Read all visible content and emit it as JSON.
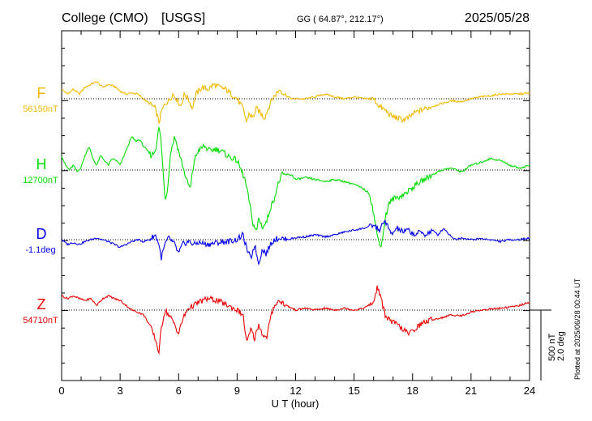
{
  "header": {
    "station": "College (CMO)",
    "network": "[USGS]",
    "geo": "GG ( 64.87°, 212.17°)",
    "date": "2025/05/28"
  },
  "plotted_note": "Plotted at 2025/06/28 00:44 UT",
  "scale_label_1": "500 nT",
  "scale_label_2": "2.0 deg",
  "chart_data": {
    "type": "line",
    "xlabel": "U T (hour)",
    "xlim": [
      0,
      24
    ],
    "xticks": [
      0,
      3,
      6,
      9,
      12,
      15,
      18,
      21,
      24
    ],
    "grid": false,
    "series": [
      {
        "name": "F",
        "baseline_label": "56150nT",
        "color": "#f5b800",
        "points": [
          [
            0,
            0.1
          ],
          [
            0.3,
            0.05
          ],
          [
            0.6,
            0.1
          ],
          [
            0.9,
            0.05
          ],
          [
            1.2,
            0.12
          ],
          [
            1.5,
            0.15
          ],
          [
            1.8,
            0.18
          ],
          [
            2.1,
            0.12
          ],
          [
            2.4,
            0.15
          ],
          [
            2.7,
            0.13
          ],
          [
            3.0,
            0.08
          ],
          [
            3.3,
            0.05
          ],
          [
            3.6,
            0.06
          ],
          [
            3.9,
            0.05
          ],
          [
            4.2,
            0.0
          ],
          [
            4.5,
            -0.05
          ],
          [
            4.8,
            -0.1
          ],
          [
            5.0,
            -0.25
          ],
          [
            5.1,
            -0.15
          ],
          [
            5.3,
            -0.05
          ],
          [
            5.5,
            -0.02
          ],
          [
            5.7,
            0.05
          ],
          [
            5.9,
            0.0
          ],
          [
            6.1,
            -0.08
          ],
          [
            6.3,
            0.05
          ],
          [
            6.5,
            0.0
          ],
          [
            6.7,
            -0.1
          ],
          [
            6.9,
            0.05
          ],
          [
            7.2,
            0.12
          ],
          [
            7.5,
            0.1
          ],
          [
            7.8,
            0.15
          ],
          [
            8.1,
            0.12
          ],
          [
            8.4,
            0.1
          ],
          [
            8.7,
            0.05
          ],
          [
            9.0,
            0.0
          ],
          [
            9.3,
            -0.1
          ],
          [
            9.5,
            -0.25
          ],
          [
            9.6,
            -0.15
          ],
          [
            9.8,
            -0.2
          ],
          [
            10.0,
            -0.1
          ],
          [
            10.2,
            -0.15
          ],
          [
            10.4,
            -0.2
          ],
          [
            10.6,
            -0.1
          ],
          [
            10.8,
            0.0
          ],
          [
            11.0,
            0.05
          ],
          [
            11.2,
            0.1
          ],
          [
            11.4,
            0.05
          ],
          [
            11.6,
            0.02
          ],
          [
            11.8,
            0.0
          ],
          [
            12.0,
            0.0
          ],
          [
            12.5,
            0.0
          ],
          [
            13.0,
            0.02
          ],
          [
            13.5,
            0.05
          ],
          [
            14.0,
            0.02
          ],
          [
            14.5,
            0.0
          ],
          [
            15.0,
            0.02
          ],
          [
            15.5,
            0.0
          ],
          [
            16.0,
            0.0
          ],
          [
            16.3,
            -0.08
          ],
          [
            16.6,
            -0.12
          ],
          [
            16.9,
            -0.18
          ],
          [
            17.2,
            -0.2
          ],
          [
            17.5,
            -0.22
          ],
          [
            17.8,
            -0.2
          ],
          [
            18.1,
            -0.15
          ],
          [
            18.4,
            -0.12
          ],
          [
            18.7,
            -0.1
          ],
          [
            19.0,
            -0.08
          ],
          [
            19.5,
            -0.05
          ],
          [
            20.0,
            -0.02
          ],
          [
            20.5,
            -0.03
          ],
          [
            21.0,
            0.0
          ],
          [
            21.5,
            0.02
          ],
          [
            22.0,
            0.03
          ],
          [
            22.5,
            0.05
          ],
          [
            23.0,
            0.05
          ],
          [
            23.5,
            0.05
          ],
          [
            24.0,
            0.06
          ]
        ]
      },
      {
        "name": "H",
        "baseline_label": "12700nT",
        "color": "#00dd00",
        "points": [
          [
            0,
            0.15
          ],
          [
            0.2,
            0.05
          ],
          [
            0.4,
            0.0
          ],
          [
            0.6,
            0.05
          ],
          [
            0.8,
            -0.02
          ],
          [
            1.0,
            0.03
          ],
          [
            1.2,
            0.15
          ],
          [
            1.4,
            0.25
          ],
          [
            1.6,
            0.12
          ],
          [
            1.8,
            0.05
          ],
          [
            2.0,
            0.15
          ],
          [
            2.2,
            0.1
          ],
          [
            2.4,
            0.05
          ],
          [
            2.6,
            0.12
          ],
          [
            2.8,
            0.1
          ],
          [
            3.0,
            0.05
          ],
          [
            3.2,
            0.15
          ],
          [
            3.4,
            0.25
          ],
          [
            3.6,
            0.35
          ],
          [
            3.8,
            0.3
          ],
          [
            4.0,
            0.32
          ],
          [
            4.2,
            0.25
          ],
          [
            4.4,
            0.2
          ],
          [
            4.6,
            0.15
          ],
          [
            4.8,
            0.2
          ],
          [
            5.0,
            0.45
          ],
          [
            5.1,
            0.3
          ],
          [
            5.3,
            -0.3
          ],
          [
            5.4,
            -0.25
          ],
          [
            5.6,
            0.2
          ],
          [
            5.8,
            0.35
          ],
          [
            6.0,
            0.2
          ],
          [
            6.2,
            0.05
          ],
          [
            6.4,
            -0.1
          ],
          [
            6.6,
            -0.2
          ],
          [
            6.8,
            0.1
          ],
          [
            7.0,
            0.2
          ],
          [
            7.3,
            0.25
          ],
          [
            7.6,
            0.2
          ],
          [
            7.9,
            0.22
          ],
          [
            8.2,
            0.2
          ],
          [
            8.5,
            0.15
          ],
          [
            8.8,
            0.12
          ],
          [
            9.0,
            0.1
          ],
          [
            9.2,
            0.0
          ],
          [
            9.4,
            -0.1
          ],
          [
            9.6,
            -0.3
          ],
          [
            9.8,
            -0.55
          ],
          [
            10.0,
            -0.65
          ],
          [
            10.1,
            -0.5
          ],
          [
            10.3,
            -0.6
          ],
          [
            10.5,
            -0.55
          ],
          [
            10.7,
            -0.4
          ],
          [
            10.9,
            -0.3
          ],
          [
            11.1,
            -0.15
          ],
          [
            11.3,
            -0.05
          ],
          [
            11.5,
            -0.05
          ],
          [
            11.8,
            -0.05
          ],
          [
            12.0,
            -0.1
          ],
          [
            12.5,
            -0.08
          ],
          [
            13.0,
            -0.1
          ],
          [
            13.5,
            -0.12
          ],
          [
            14.0,
            -0.1
          ],
          [
            14.5,
            -0.12
          ],
          [
            15.0,
            -0.15
          ],
          [
            15.5,
            -0.2
          ],
          [
            15.8,
            -0.25
          ],
          [
            16.0,
            -0.45
          ],
          [
            16.2,
            -0.7
          ],
          [
            16.4,
            -0.8
          ],
          [
            16.6,
            -0.5
          ],
          [
            16.8,
            -0.35
          ],
          [
            17.0,
            -0.3
          ],
          [
            17.3,
            -0.28
          ],
          [
            17.6,
            -0.25
          ],
          [
            17.9,
            -0.2
          ],
          [
            18.2,
            -0.15
          ],
          [
            18.6,
            -0.1
          ],
          [
            19.0,
            -0.05
          ],
          [
            19.5,
            0.0
          ],
          [
            20.0,
            0.02
          ],
          [
            20.5,
            -0.02
          ],
          [
            21.0,
            0.05
          ],
          [
            21.5,
            0.08
          ],
          [
            22.0,
            0.12
          ],
          [
            22.5,
            0.1
          ],
          [
            23.0,
            0.05
          ],
          [
            23.5,
            0.02
          ],
          [
            24.0,
            0.05
          ]
        ]
      },
      {
        "name": "D",
        "baseline_label": "-1.1deg",
        "color": "#0000ee",
        "points": [
          [
            0,
            0.0
          ],
          [
            0.3,
            -0.05
          ],
          [
            0.6,
            -0.03
          ],
          [
            0.9,
            -0.05
          ],
          [
            1.2,
            -0.02
          ],
          [
            1.5,
            0.0
          ],
          [
            1.8,
            0.02
          ],
          [
            2.1,
            0.0
          ],
          [
            2.4,
            -0.02
          ],
          [
            2.7,
            -0.05
          ],
          [
            3.0,
            -0.08
          ],
          [
            3.3,
            -0.05
          ],
          [
            3.6,
            -0.02
          ],
          [
            3.9,
            0.0
          ],
          [
            4.2,
            -0.02
          ],
          [
            4.5,
            0.0
          ],
          [
            4.8,
            0.05
          ],
          [
            5.0,
            -0.05
          ],
          [
            5.1,
            -0.2
          ],
          [
            5.3,
            -0.05
          ],
          [
            5.5,
            0.02
          ],
          [
            5.8,
            -0.05
          ],
          [
            6.0,
            -0.15
          ],
          [
            6.2,
            -0.05
          ],
          [
            6.5,
            -0.02
          ],
          [
            6.8,
            -0.05
          ],
          [
            7.0,
            -0.03
          ],
          [
            7.5,
            -0.05
          ],
          [
            8.0,
            -0.03
          ],
          [
            8.5,
            -0.02
          ],
          [
            9.0,
            0.0
          ],
          [
            9.3,
            0.05
          ],
          [
            9.5,
            -0.1
          ],
          [
            9.7,
            -0.2
          ],
          [
            9.9,
            -0.05
          ],
          [
            10.1,
            -0.25
          ],
          [
            10.3,
            -0.1
          ],
          [
            10.5,
            -0.15
          ],
          [
            10.7,
            -0.05
          ],
          [
            10.9,
            0.0
          ],
          [
            11.2,
            0.02
          ],
          [
            11.5,
            0.0
          ],
          [
            12.0,
            0.02
          ],
          [
            12.5,
            0.03
          ],
          [
            13.0,
            0.05
          ],
          [
            13.5,
            0.03
          ],
          [
            14.0,
            0.05
          ],
          [
            14.5,
            0.08
          ],
          [
            15.0,
            0.1
          ],
          [
            15.5,
            0.12
          ],
          [
            16.0,
            0.15
          ],
          [
            16.3,
            0.1
          ],
          [
            16.6,
            0.2
          ],
          [
            16.9,
            0.05
          ],
          [
            17.2,
            0.12
          ],
          [
            17.5,
            0.08
          ],
          [
            17.8,
            0.1
          ],
          [
            18.1,
            0.05
          ],
          [
            18.4,
            0.08
          ],
          [
            18.7,
            0.05
          ],
          [
            19.0,
            0.1
          ],
          [
            19.3,
            0.05
          ],
          [
            19.6,
            0.12
          ],
          [
            19.9,
            0.05
          ],
          [
            20.2,
            0.0
          ],
          [
            20.5,
            0.02
          ],
          [
            21.0,
            0.0
          ],
          [
            21.5,
            0.01
          ],
          [
            22.0,
            0.0
          ],
          [
            22.5,
            -0.02
          ],
          [
            23.0,
            0.0
          ],
          [
            23.5,
            0.0
          ],
          [
            24.0,
            0.02
          ]
        ]
      },
      {
        "name": "Z",
        "baseline_label": "54710nT",
        "color": "#ee0000",
        "points": [
          [
            0,
            0.15
          ],
          [
            0.3,
            0.12
          ],
          [
            0.6,
            0.15
          ],
          [
            0.9,
            0.12
          ],
          [
            1.2,
            0.1
          ],
          [
            1.5,
            0.12
          ],
          [
            1.8,
            0.05
          ],
          [
            2.1,
            0.12
          ],
          [
            2.4,
            0.15
          ],
          [
            2.7,
            0.12
          ],
          [
            3.0,
            0.1
          ],
          [
            3.3,
            0.05
          ],
          [
            3.6,
            0.0
          ],
          [
            3.9,
            -0.02
          ],
          [
            4.2,
            -0.05
          ],
          [
            4.5,
            -0.15
          ],
          [
            4.8,
            -0.3
          ],
          [
            5.0,
            -0.45
          ],
          [
            5.1,
            -0.2
          ],
          [
            5.3,
            0.0
          ],
          [
            5.5,
            -0.05
          ],
          [
            5.8,
            -0.15
          ],
          [
            6.0,
            -0.25
          ],
          [
            6.2,
            -0.1
          ],
          [
            6.5,
            0.02
          ],
          [
            6.8,
            0.05
          ],
          [
            7.0,
            0.08
          ],
          [
            7.5,
            0.12
          ],
          [
            8.0,
            0.1
          ],
          [
            8.5,
            0.05
          ],
          [
            9.0,
            0.0
          ],
          [
            9.3,
            -0.05
          ],
          [
            9.5,
            -0.35
          ],
          [
            9.7,
            -0.2
          ],
          [
            9.9,
            -0.3
          ],
          [
            10.1,
            -0.15
          ],
          [
            10.3,
            -0.25
          ],
          [
            10.5,
            -0.3
          ],
          [
            10.7,
            -0.1
          ],
          [
            10.9,
            0.05
          ],
          [
            11.2,
            0.1
          ],
          [
            11.5,
            0.05
          ],
          [
            12.0,
            0.0
          ],
          [
            12.5,
            0.02
          ],
          [
            13.0,
            0.0
          ],
          [
            13.5,
            0.02
          ],
          [
            14.0,
            0.0
          ],
          [
            14.5,
            0.02
          ],
          [
            15.0,
            0.0
          ],
          [
            15.5,
            0.02
          ],
          [
            16.0,
            0.08
          ],
          [
            16.2,
            0.25
          ],
          [
            16.4,
            0.1
          ],
          [
            16.6,
            -0.05
          ],
          [
            16.9,
            -0.12
          ],
          [
            17.2,
            -0.15
          ],
          [
            17.5,
            -0.2
          ],
          [
            17.8,
            -0.25
          ],
          [
            18.1,
            -0.2
          ],
          [
            18.4,
            -0.15
          ],
          [
            18.7,
            -0.12
          ],
          [
            19.0,
            -0.1
          ],
          [
            19.5,
            -0.08
          ],
          [
            20.0,
            -0.05
          ],
          [
            20.5,
            -0.06
          ],
          [
            21.0,
            -0.02
          ],
          [
            21.5,
            0.0
          ],
          [
            22.0,
            0.01
          ],
          [
            22.5,
            0.02
          ],
          [
            23.0,
            0.03
          ],
          [
            23.5,
            0.05
          ],
          [
            24.0,
            0.08
          ]
        ]
      }
    ]
  }
}
